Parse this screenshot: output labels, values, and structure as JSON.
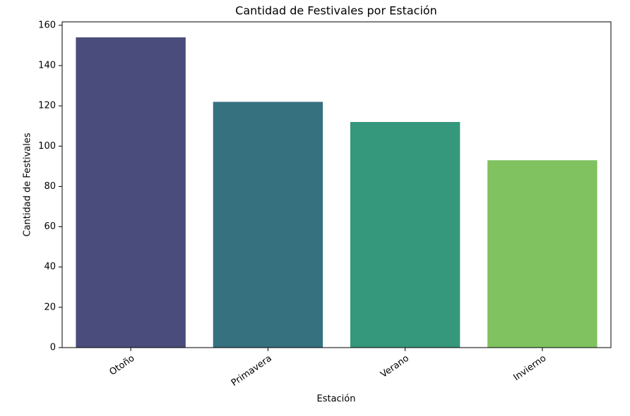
{
  "chart_data": {
    "type": "bar",
    "title": "Cantidad de Festivales por Estación",
    "xlabel": "Estación",
    "ylabel": "Cantidad de Festivales",
    "categories": [
      "Otoño",
      "Primavera",
      "Verano",
      "Invierno"
    ],
    "values": [
      154,
      122,
      112,
      93
    ],
    "colors": [
      "#4a4c7c",
      "#36717f",
      "#35977b",
      "#7fc25f"
    ],
    "ylim": [
      0,
      161.7
    ],
    "yticks": [
      0,
      20,
      40,
      60,
      80,
      100,
      120,
      140,
      160
    ]
  }
}
